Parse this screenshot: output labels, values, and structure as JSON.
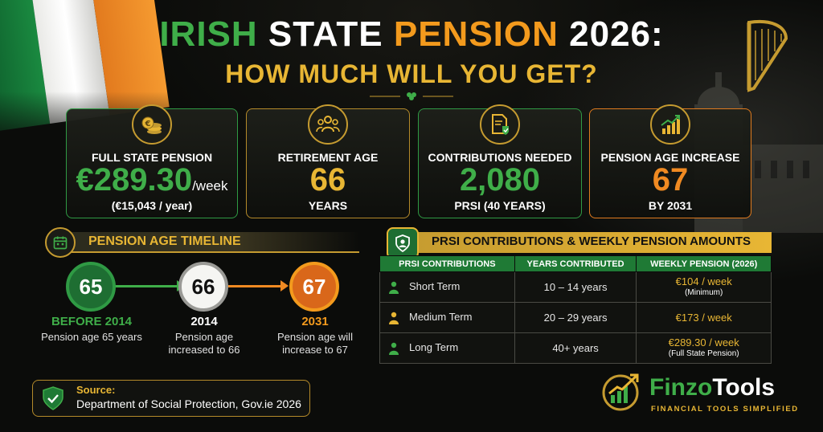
{
  "title": {
    "part1": "IRISH",
    "part2": "STATE",
    "part3": "PENSION",
    "part4": "2026:",
    "subtitle": "HOW MUCH WILL YOU GET?"
  },
  "cards": [
    {
      "icon": "coins-icon",
      "label": "FULL STATE PENSION",
      "value": "€289.30",
      "unit": "/week",
      "sub": "(€15,043 / year)"
    },
    {
      "icon": "people-icon",
      "label": "RETIREMENT AGE",
      "value": "66",
      "sub": "YEARS"
    },
    {
      "icon": "document-check-icon",
      "label": "CONTRIBUTIONS NEEDED",
      "value": "2,080",
      "sub": "PRSI (40 YEARS)"
    },
    {
      "icon": "chart-up-icon",
      "label": "PENSION AGE INCREASE",
      "value": "67",
      "sub": "BY 2031"
    }
  ],
  "timeline": {
    "title": "PENSION AGE TIMELINE",
    "nodes": [
      {
        "age": "65",
        "year": "BEFORE 2014",
        "desc": "Pension age 65 years"
      },
      {
        "age": "66",
        "year": "2014",
        "desc": "Pension age increased to 66"
      },
      {
        "age": "67",
        "year": "2031",
        "desc": "Pension age will increase to 67"
      }
    ]
  },
  "prsi": {
    "title": "PRSI CONTRIBUTIONS & WEEKLY PENSION AMOUNTS",
    "columns": [
      "PRSI CONTRIBUTIONS",
      "YEARS CONTRIBUTED",
      "WEEKLY PENSION (2026)"
    ],
    "rows": [
      {
        "type": "Short Term",
        "years": "10 – 14 years",
        "pension": "€104 / week",
        "note": "(Minimum)"
      },
      {
        "type": "Medium Term",
        "years": "20 – 29 years",
        "pension": "€173 / week",
        "note": ""
      },
      {
        "type": "Long Term",
        "years": "40+ years",
        "pension": "€289.30 / week",
        "note": "(Full State Pension)"
      }
    ]
  },
  "source": {
    "label": "Source:",
    "text": "Department of Social Protection, Gov.ie 2026"
  },
  "brand": {
    "name_a": "Finzo",
    "name_b": "Tools",
    "tagline": "FINANCIAL TOOLS SIMPLIFIED"
  },
  "colors": {
    "green": "#3fae49",
    "gold": "#e8b634",
    "orange": "#f08a22",
    "background": "#0b0c0a"
  }
}
